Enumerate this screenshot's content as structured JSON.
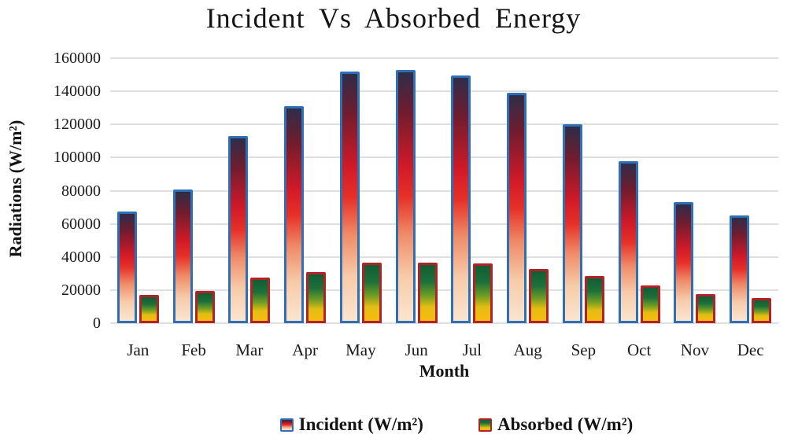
{
  "title": "Incident Vs Absorbed Energy",
  "axes": {
    "y_label": "Radiations (W/m²)",
    "x_label": "Month",
    "y_ticks": [
      "160000",
      "140000",
      "120000",
      "100000",
      "80000",
      "60000",
      "40000",
      "20000",
      "0"
    ]
  },
  "legend": [
    {
      "label": "Incident (W/m²)",
      "swatch": "incident"
    },
    {
      "label": "Absorbed (W/m²)",
      "swatch": "absorbed"
    }
  ],
  "colors": {
    "incident_border": "#2e6fb5",
    "absorbed_border": "#b22227",
    "gridline": "#dcdcdc",
    "text": "#141414",
    "incident_gradient": [
      "#2e2d49",
      "#701c2e",
      "#d11a28",
      "#e63028",
      "#ef8a67",
      "#f7cba9",
      "#fbe5d0"
    ],
    "absorbed_gradient": [
      "#135c33",
      "#1d703a",
      "#6f9d25",
      "#e3bd12",
      "#f9bb10"
    ]
  },
  "chart_data": {
    "type": "bar",
    "categories": [
      "Jan",
      "Feb",
      "Mar",
      "Apr",
      "May",
      "Jun",
      "Jul",
      "Aug",
      "Sep",
      "Oct",
      "Nov",
      "Dec"
    ],
    "series": [
      {
        "name": "Incident (W/m²)",
        "values": [
          67500,
          80500,
          113000,
          131000,
          152000,
          153000,
          149500,
          139000,
          120000,
          98000,
          73000,
          65000
        ]
      },
      {
        "name": "Absorbed (W/m²)",
        "values": [
          17000,
          19500,
          27500,
          31000,
          36500,
          36600,
          36000,
          33000,
          28500,
          23000,
          17500,
          15000
        ]
      }
    ],
    "title": "Incident Vs Absorbed Energy",
    "xlabel": "Month",
    "ylabel": "Radiations (W/m²)",
    "ylim": [
      0,
      160000
    ],
    "ytick_step": 20000,
    "grid": true,
    "legend_position": "bottom"
  }
}
